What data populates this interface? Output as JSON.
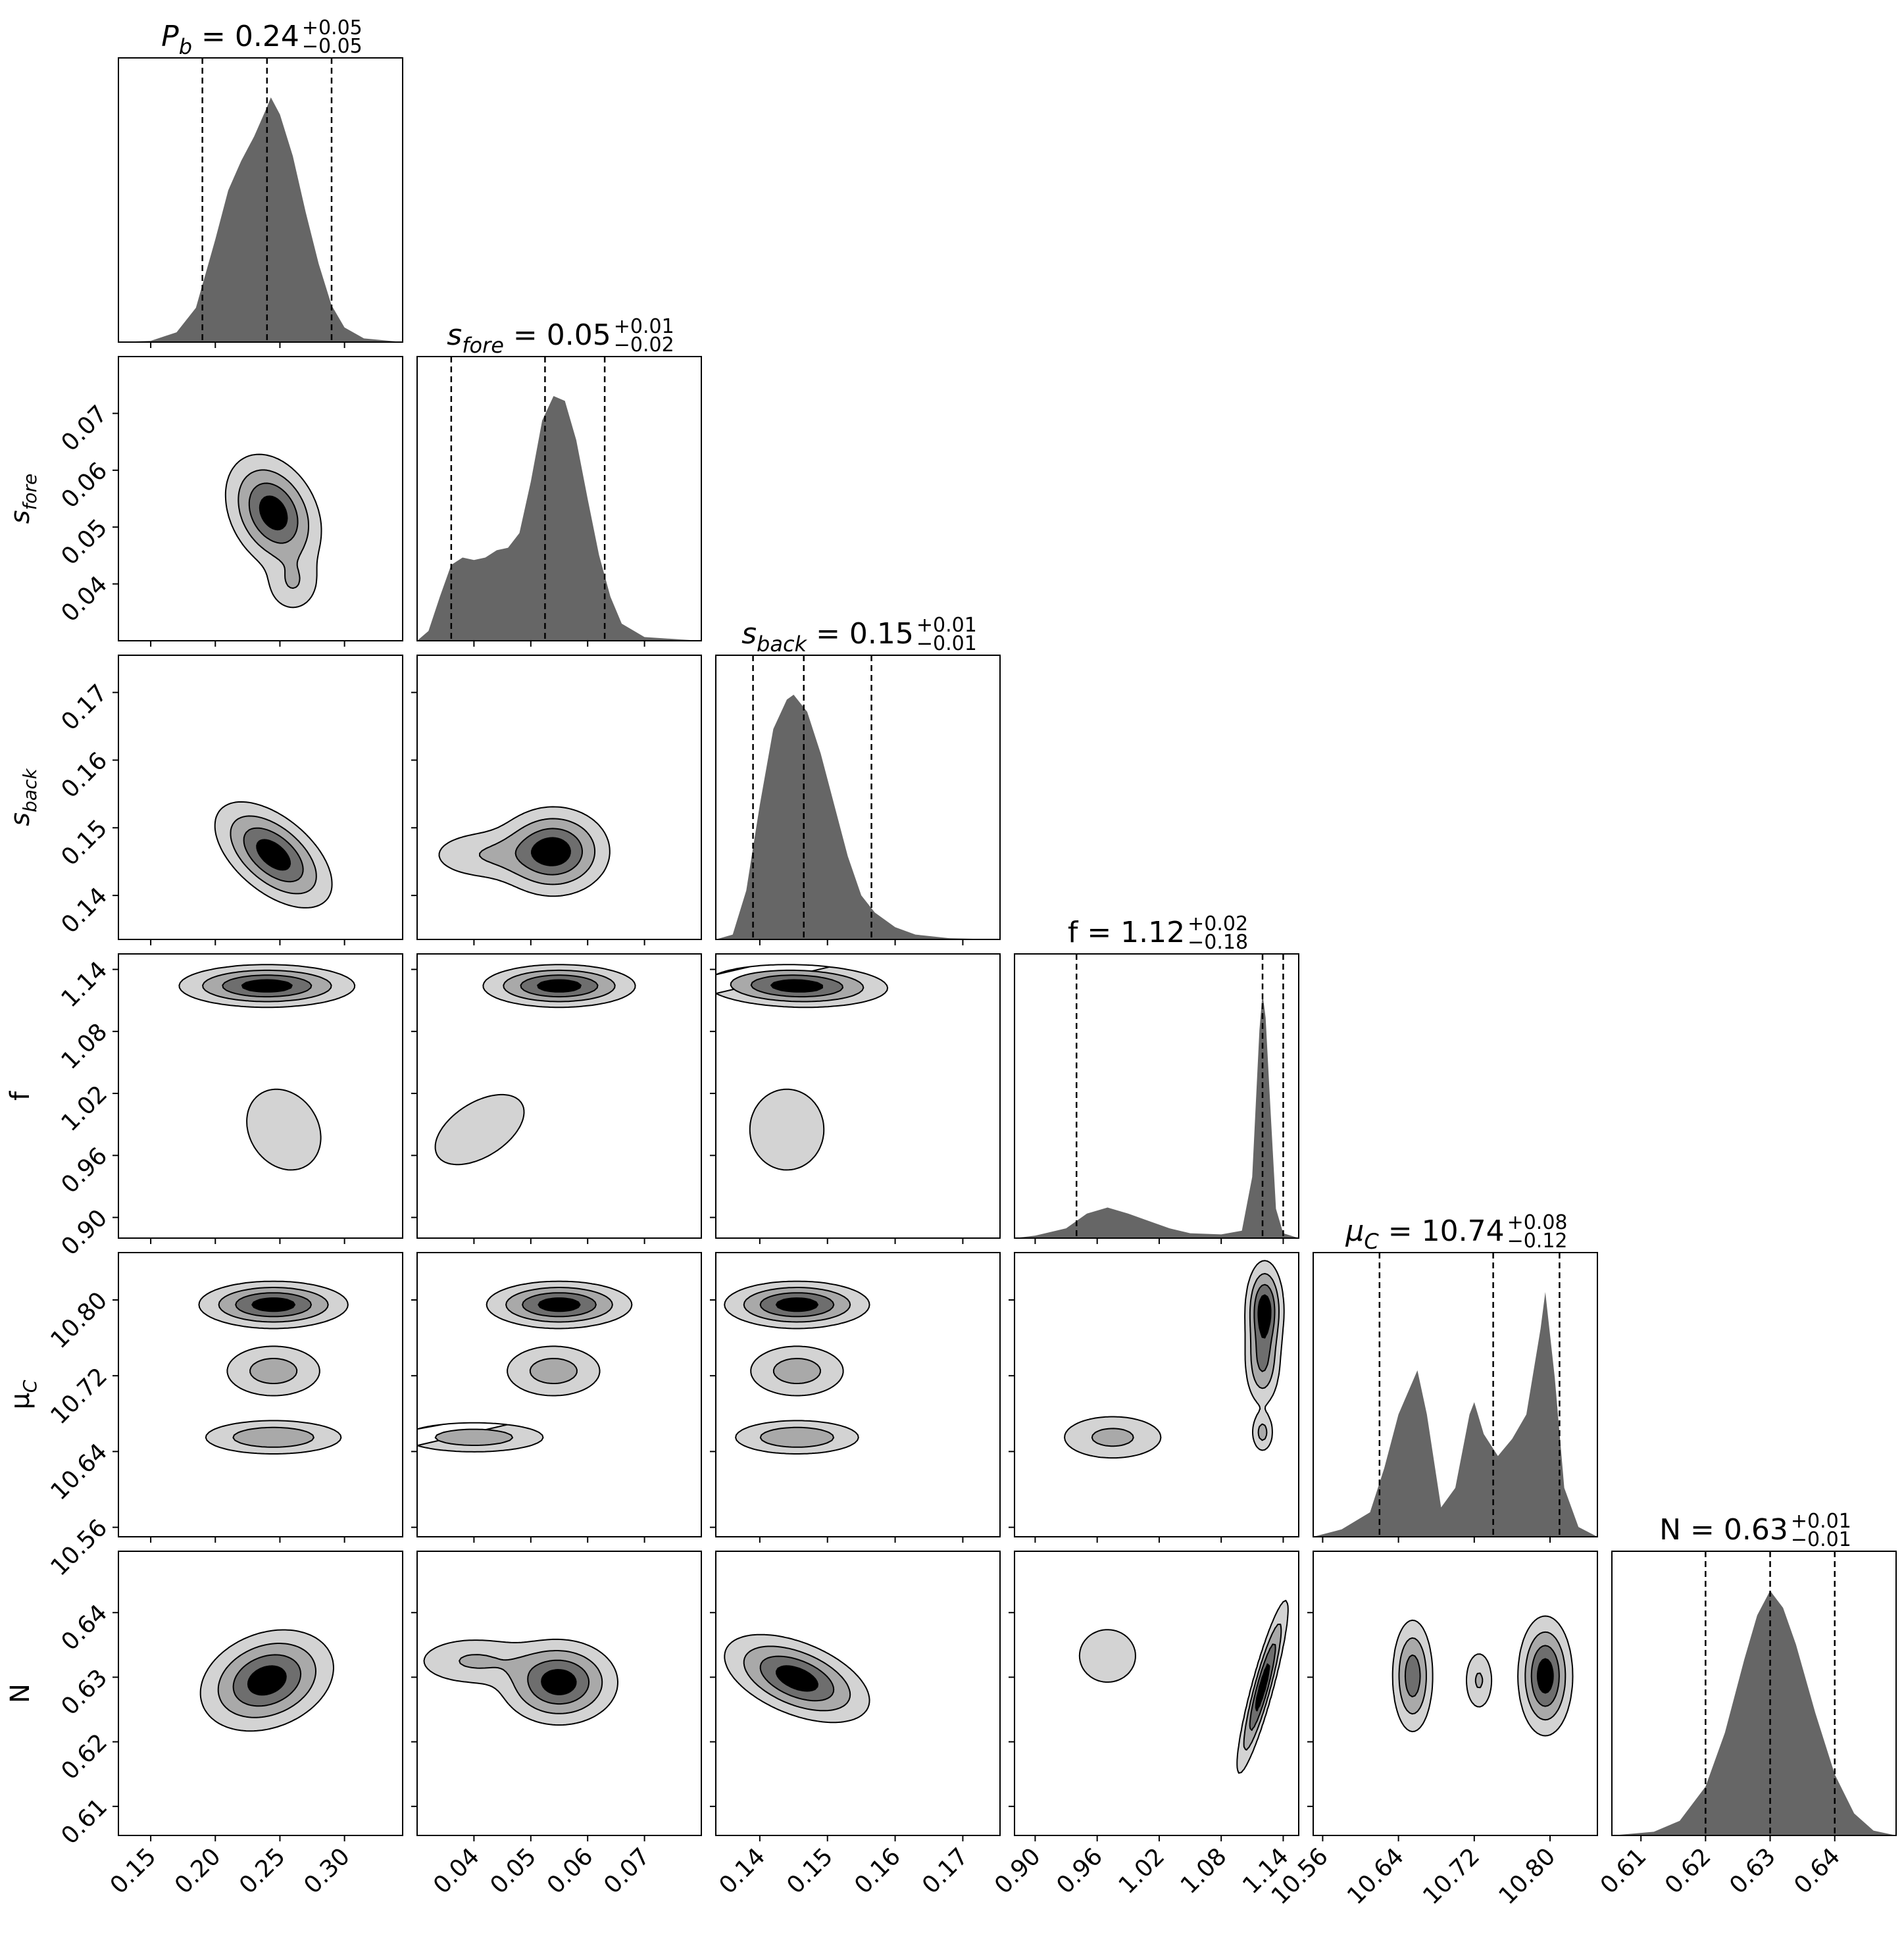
{
  "figure": {
    "type": "corner-plot",
    "colors": {
      "hist": "#666666",
      "level1": "#d3d3d3",
      "level2": "#a9a9a9",
      "level3": "#6e6e6e",
      "level4": "#000000",
      "outline": "#000000",
      "quantile_line": "#000000"
    }
  },
  "chart_data": {
    "type": "corner",
    "parameters": [
      {
        "key": "Pb",
        "axis_label": "P",
        "axis_sub": "b",
        "title_pre": "P",
        "title_sub": "b",
        "title_value": "= 0.24",
        "title_plus": "+0.05",
        "title_minus": "−0.05",
        "median": 0.24,
        "q_lo": 0.19,
        "q_hi": 0.29,
        "range": [
          0.125,
          0.345
        ],
        "ticks": [
          "0.15",
          "0.20",
          "0.25",
          "0.30"
        ],
        "hist": [
          [
            0.125,
            0
          ],
          [
            0.15,
            0.005
          ],
          [
            0.17,
            0.04
          ],
          [
            0.185,
            0.14
          ],
          [
            0.2,
            0.42
          ],
          [
            0.21,
            0.62
          ],
          [
            0.22,
            0.74
          ],
          [
            0.23,
            0.84
          ],
          [
            0.24,
            0.96
          ],
          [
            0.243,
            1.0
          ],
          [
            0.25,
            0.93
          ],
          [
            0.26,
            0.76
          ],
          [
            0.27,
            0.53
          ],
          [
            0.28,
            0.32
          ],
          [
            0.29,
            0.15
          ],
          [
            0.3,
            0.06
          ],
          [
            0.315,
            0.015
          ],
          [
            0.345,
            0
          ]
        ]
      },
      {
        "key": "sfore",
        "axis_label": "s",
        "axis_sub": "fore",
        "title_pre": "s",
        "title_sub": "fore",
        "title_value": "= 0.05",
        "title_plus": "+0.01",
        "title_minus": "−0.02",
        "median": 0.0525,
        "q_lo": 0.036,
        "q_hi": 0.063,
        "range": [
          0.03,
          0.08
        ],
        "ticks": [
          "0.04",
          "0.05",
          "0.06",
          "0.07"
        ],
        "hist": [
          [
            0.03,
            0
          ],
          [
            0.032,
            0.04
          ],
          [
            0.034,
            0.18
          ],
          [
            0.036,
            0.31
          ],
          [
            0.038,
            0.34
          ],
          [
            0.04,
            0.33
          ],
          [
            0.042,
            0.34
          ],
          [
            0.044,
            0.37
          ],
          [
            0.046,
            0.38
          ],
          [
            0.048,
            0.44
          ],
          [
            0.05,
            0.65
          ],
          [
            0.052,
            0.9
          ],
          [
            0.054,
            1.0
          ],
          [
            0.056,
            0.98
          ],
          [
            0.058,
            0.82
          ],
          [
            0.06,
            0.58
          ],
          [
            0.062,
            0.35
          ],
          [
            0.064,
            0.18
          ],
          [
            0.066,
            0.07
          ],
          [
            0.07,
            0.015
          ],
          [
            0.08,
            0
          ]
        ]
      },
      {
        "key": "sback",
        "axis_label": "s",
        "axis_sub": "back",
        "title_pre": "s",
        "title_sub": "back",
        "title_value": "= 0.15",
        "title_plus": "+0.01",
        "title_minus": "−0.01",
        "median": 0.1465,
        "q_lo": 0.139,
        "q_hi": 0.1565,
        "range": [
          0.1335,
          0.1755
        ],
        "ticks": [
          "0.14",
          "0.15",
          "0.16",
          "0.17"
        ],
        "hist": [
          [
            0.1335,
            0
          ],
          [
            0.136,
            0.02
          ],
          [
            0.138,
            0.2
          ],
          [
            0.14,
            0.55
          ],
          [
            0.142,
            0.86
          ],
          [
            0.144,
            0.98
          ],
          [
            0.145,
            1.0
          ],
          [
            0.147,
            0.93
          ],
          [
            0.149,
            0.76
          ],
          [
            0.151,
            0.55
          ],
          [
            0.153,
            0.34
          ],
          [
            0.155,
            0.18
          ],
          [
            0.157,
            0.11
          ],
          [
            0.16,
            0.05
          ],
          [
            0.163,
            0.02
          ],
          [
            0.168,
            0.005
          ],
          [
            0.1755,
            0
          ]
        ]
      },
      {
        "key": "f",
        "axis_label": "f",
        "axis_sub": "",
        "title_pre": "f",
        "title_sub": "",
        "title_value": "= 1.12",
        "title_plus": "+0.02",
        "title_minus": "−0.18",
        "median": 1.12,
        "q_lo": 0.94,
        "q_hi": 1.14,
        "range": [
          0.88,
          1.155
        ],
        "ticks": [
          "0.90",
          "0.96",
          "1.02",
          "1.08",
          "1.14"
        ],
        "hist": [
          [
            0.88,
            0
          ],
          [
            0.9,
            0.01
          ],
          [
            0.93,
            0.04
          ],
          [
            0.95,
            0.1
          ],
          [
            0.97,
            0.125
          ],
          [
            0.99,
            0.1
          ],
          [
            1.01,
            0.07
          ],
          [
            1.03,
            0.04
          ],
          [
            1.05,
            0.02
          ],
          [
            1.08,
            0.015
          ],
          [
            1.1,
            0.03
          ],
          [
            1.11,
            0.25
          ],
          [
            1.117,
            0.85
          ],
          [
            1.12,
            1.0
          ],
          [
            1.123,
            0.9
          ],
          [
            1.128,
            0.5
          ],
          [
            1.133,
            0.12
          ],
          [
            1.14,
            0.02
          ],
          [
            1.155,
            0
          ]
        ]
      },
      {
        "key": "muC",
        "axis_label": "μ",
        "axis_sub": "C",
        "title_pre": "μ",
        "title_sub": "C",
        "title_value": "= 10.74",
        "title_plus": "+0.08",
        "title_minus": "−0.12",
        "median": 10.74,
        "q_lo": 10.62,
        "q_hi": 10.81,
        "range": [
          10.55,
          10.85
        ],
        "ticks": [
          "10.56",
          "10.64",
          "10.72",
          "10.80"
        ],
        "hist": [
          [
            10.55,
            0
          ],
          [
            10.58,
            0.03
          ],
          [
            10.61,
            0.1
          ],
          [
            10.625,
            0.28
          ],
          [
            10.64,
            0.5
          ],
          [
            10.66,
            0.68
          ],
          [
            10.67,
            0.5
          ],
          [
            10.685,
            0.12
          ],
          [
            10.7,
            0.2
          ],
          [
            10.715,
            0.5
          ],
          [
            10.72,
            0.55
          ],
          [
            10.73,
            0.42
          ],
          [
            10.745,
            0.33
          ],
          [
            10.76,
            0.4
          ],
          [
            10.775,
            0.5
          ],
          [
            10.79,
            0.85
          ],
          [
            10.795,
            1.0
          ],
          [
            10.805,
            0.65
          ],
          [
            10.815,
            0.2
          ],
          [
            10.83,
            0.04
          ],
          [
            10.85,
            0
          ]
        ]
      },
      {
        "key": "N",
        "axis_label": "N",
        "axis_sub": "",
        "title_pre": "N",
        "title_sub": "",
        "title_value": "= 0.63",
        "title_plus": "+0.01",
        "title_minus": "−0.01",
        "median": 0.63,
        "q_lo": 0.62,
        "q_hi": 0.64,
        "range": [
          0.6055,
          0.6495
        ],
        "ticks": [
          "0.61",
          "0.62",
          "0.63",
          "0.64"
        ],
        "hist": [
          [
            0.6055,
            0
          ],
          [
            0.612,
            0.015
          ],
          [
            0.616,
            0.06
          ],
          [
            0.62,
            0.2
          ],
          [
            0.623,
            0.42
          ],
          [
            0.626,
            0.72
          ],
          [
            0.628,
            0.9
          ],
          [
            0.63,
            1.0
          ],
          [
            0.632,
            0.93
          ],
          [
            0.634,
            0.78
          ],
          [
            0.637,
            0.5
          ],
          [
            0.64,
            0.25
          ],
          [
            0.643,
            0.09
          ],
          [
            0.646,
            0.02
          ],
          [
            0.6495,
            0
          ]
        ]
      }
    ],
    "contour_levels": 4,
    "density_2d": [
      {
        "x": "Pb",
        "y": "sfore",
        "blobs": [
          [
            0.245,
            0.0525,
            0.018,
            0.005,
            -0.3,
            1.0
          ],
          [
            0.26,
            0.04,
            0.012,
            0.003,
            0,
            0.3
          ]
        ]
      },
      {
        "x": "Pb",
        "y": "sback",
        "blobs": [
          [
            0.245,
            0.146,
            0.022,
            0.0038,
            -0.55,
            1.0
          ]
        ]
      },
      {
        "x": "sfore",
        "y": "sback",
        "blobs": [
          [
            0.054,
            0.1465,
            0.0048,
            0.0032,
            0,
            1.0
          ],
          [
            0.042,
            0.146,
            0.006,
            0.0022,
            0,
            0.3
          ]
        ]
      },
      {
        "x": "Pb",
        "y": "f",
        "blobs": [
          [
            0.24,
            1.124,
            0.033,
            0.01,
            0,
            1.0
          ],
          [
            0.253,
            0.985,
            0.022,
            0.03,
            -0.2,
            0.28
          ]
        ]
      },
      {
        "x": "sfore",
        "y": "f",
        "blobs": [
          [
            0.055,
            1.124,
            0.0065,
            0.01,
            0,
            1.0
          ],
          [
            0.041,
            0.985,
            0.006,
            0.026,
            0.5,
            0.28
          ]
        ]
      },
      {
        "x": "sback",
        "y": "f",
        "blobs": [
          [
            0.1455,
            1.124,
            0.0065,
            0.01,
            -0.1,
            1.0
          ],
          [
            0.144,
            0.985,
            0.0042,
            0.03,
            0,
            0.28
          ]
        ]
      },
      {
        "x": "Pb",
        "y": "muC",
        "blobs": [
          [
            0.245,
            10.795,
            0.028,
            0.012,
            0,
            1.0
          ],
          [
            0.245,
            10.725,
            0.022,
            0.016,
            0,
            0.45
          ],
          [
            0.245,
            10.655,
            0.03,
            0.01,
            0,
            0.55
          ]
        ]
      },
      {
        "x": "sfore",
        "y": "muC",
        "blobs": [
          [
            0.055,
            10.795,
            0.0062,
            0.012,
            0,
            1.0
          ],
          [
            0.054,
            10.725,
            0.005,
            0.016,
            0,
            0.45
          ],
          [
            0.04,
            10.655,
            0.0072,
            0.009,
            0,
            0.5
          ]
        ]
      },
      {
        "x": "sback",
        "y": "muC",
        "blobs": [
          [
            0.1455,
            10.795,
            0.0052,
            0.012,
            0,
            1.0
          ],
          [
            0.1455,
            10.725,
            0.0042,
            0.016,
            0,
            0.45
          ],
          [
            0.1455,
            10.655,
            0.0052,
            0.01,
            0,
            0.55
          ]
        ]
      },
      {
        "x": "f",
        "y": "muC",
        "blobs": [
          [
            1.122,
            10.79,
            0.009,
            0.025,
            0,
            1.0
          ],
          [
            1.12,
            10.735,
            0.009,
            0.025,
            0,
            0.6
          ],
          [
            1.12,
            10.66,
            0.006,
            0.012,
            0,
            0.4
          ],
          [
            0.975,
            10.655,
            0.03,
            0.014,
            0,
            0.4
          ],
          [
            0.955,
            10.705,
            0.01,
            0.006,
            0,
            0.12
          ]
        ]
      },
      {
        "x": "Pb",
        "y": "N",
        "blobs": [
          [
            0.24,
            0.6295,
            0.025,
            0.0038,
            0.25,
            1.0
          ]
        ]
      },
      {
        "x": "sfore",
        "y": "N",
        "blobs": [
          [
            0.055,
            0.6292,
            0.005,
            0.0032,
            0,
            1.0
          ],
          [
            0.04,
            0.6325,
            0.006,
            0.0022,
            0,
            0.35
          ]
        ]
      },
      {
        "x": "sback",
        "y": "N",
        "blobs": [
          [
            0.1455,
            0.6298,
            0.0052,
            0.0033,
            -0.5,
            1.0
          ]
        ]
      },
      {
        "x": "f",
        "y": "N",
        "blobs": [
          [
            1.12,
            0.6285,
            0.012,
            0.0065,
            0.9,
            1.0
          ],
          [
            0.97,
            0.6333,
            0.02,
            0.003,
            0,
            0.3
          ]
        ]
      },
      {
        "x": "muC",
        "y": "N",
        "blobs": [
          [
            10.795,
            0.6302,
            0.014,
            0.0045,
            0,
            1.0
          ],
          [
            10.655,
            0.6302,
            0.011,
            0.0045,
            0,
            0.75
          ],
          [
            10.725,
            0.6295,
            0.009,
            0.0028,
            0,
            0.35
          ]
        ]
      }
    ]
  }
}
